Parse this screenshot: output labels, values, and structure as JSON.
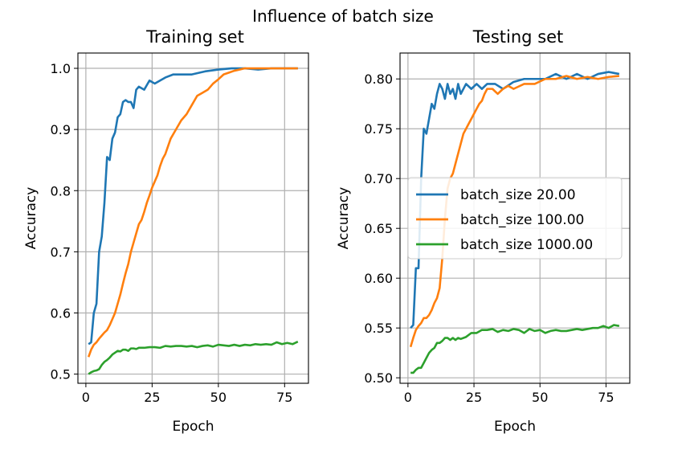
{
  "figure_title": "Influence of batch size",
  "legend": {
    "placement": "center-left of right panel",
    "entries": [
      {
        "label": "batch_size 20.00",
        "color": "#1f77b4"
      },
      {
        "label": "batch_size 100.00",
        "color": "#ff7f0e"
      },
      {
        "label": "batch_size 1000.00",
        "color": "#2ca02c"
      }
    ]
  },
  "chart_data": [
    {
      "type": "line",
      "title": "Training set",
      "xlabel": "Epoch",
      "ylabel": "Accuracy",
      "xlim": [
        -3,
        84
      ],
      "ylim": [
        0.485,
        1.025
      ],
      "grid": true,
      "xticks": [
        0,
        25,
        50,
        75
      ],
      "xtick_labels": [
        "0",
        "25",
        "50",
        "75"
      ],
      "yticks": [
        0.5,
        0.6,
        0.7,
        0.8,
        0.9,
        1.0
      ],
      "ytick_labels": [
        "0.5",
        "0.6",
        "0.7",
        "0.8",
        "0.9",
        "1.0"
      ],
      "series": [
        {
          "name": "batch_size 20.00",
          "color": "#1f77b4",
          "x": [
            1,
            2,
            3,
            4,
            5,
            6,
            7,
            8,
            9,
            10,
            11,
            12,
            13,
            14,
            15,
            16,
            17,
            18,
            19,
            20,
            22,
            24,
            26,
            28,
            30,
            33,
            36,
            40,
            45,
            50,
            55,
            60,
            65,
            70,
            75,
            80
          ],
          "y": [
            0.549,
            0.552,
            0.6,
            0.615,
            0.7,
            0.725,
            0.78,
            0.855,
            0.85,
            0.885,
            0.895,
            0.92,
            0.925,
            0.945,
            0.948,
            0.945,
            0.945,
            0.935,
            0.965,
            0.97,
            0.965,
            0.98,
            0.975,
            0.98,
            0.985,
            0.99,
            0.99,
            0.99,
            0.995,
            0.998,
            1.0,
            1.0,
            0.998,
            1.0,
            1.0,
            1.0
          ]
        },
        {
          "name": "batch_size 100.00",
          "color": "#ff7f0e",
          "x": [
            1,
            2,
            3,
            4,
            5,
            6,
            7,
            8,
            9,
            10,
            11,
            12,
            13,
            14,
            15,
            16,
            17,
            18,
            19,
            20,
            21,
            22,
            23,
            24,
            25,
            26,
            27,
            28,
            29,
            30,
            32,
            34,
            36,
            38,
            40,
            42,
            44,
            46,
            48,
            50,
            52,
            54,
            56,
            58,
            60,
            65,
            70,
            75,
            80
          ],
          "y": [
            0.528,
            0.54,
            0.548,
            0.552,
            0.558,
            0.563,
            0.568,
            0.572,
            0.58,
            0.59,
            0.6,
            0.615,
            0.63,
            0.648,
            0.665,
            0.68,
            0.7,
            0.715,
            0.73,
            0.745,
            0.752,
            0.765,
            0.78,
            0.792,
            0.805,
            0.815,
            0.825,
            0.84,
            0.852,
            0.86,
            0.885,
            0.9,
            0.915,
            0.925,
            0.94,
            0.955,
            0.96,
            0.965,
            0.975,
            0.982,
            0.99,
            0.993,
            0.996,
            0.998,
            1.0,
            1.0,
            1.0,
            1.0,
            1.0
          ]
        },
        {
          "name": "batch_size 1000.00",
          "color": "#2ca02c",
          "x": [
            1,
            2,
            3,
            4,
            5,
            6,
            7,
            8,
            9,
            10,
            11,
            12,
            13,
            14,
            15,
            16,
            17,
            18,
            19,
            20,
            22,
            24,
            26,
            28,
            30,
            32,
            34,
            36,
            38,
            40,
            42,
            44,
            46,
            48,
            50,
            52,
            54,
            56,
            58,
            60,
            62,
            64,
            66,
            68,
            70,
            72,
            74,
            76,
            78,
            80
          ],
          "y": [
            0.5,
            0.503,
            0.505,
            0.506,
            0.508,
            0.515,
            0.52,
            0.523,
            0.527,
            0.532,
            0.535,
            0.538,
            0.537,
            0.54,
            0.54,
            0.538,
            0.542,
            0.542,
            0.541,
            0.543,
            0.543,
            0.544,
            0.544,
            0.543,
            0.546,
            0.545,
            0.546,
            0.546,
            0.545,
            0.546,
            0.544,
            0.546,
            0.547,
            0.545,
            0.548,
            0.547,
            0.546,
            0.548,
            0.546,
            0.548,
            0.547,
            0.549,
            0.548,
            0.549,
            0.548,
            0.552,
            0.549,
            0.551,
            0.549,
            0.553
          ]
        }
      ]
    },
    {
      "type": "line",
      "title": "Testing set",
      "xlabel": "Epoch",
      "ylabel": "Accuracy",
      "xlim": [
        -3,
        84
      ],
      "ylim": [
        0.4945,
        0.826
      ],
      "grid": true,
      "xticks": [
        0,
        25,
        50,
        75
      ],
      "xtick_labels": [
        "0",
        "25",
        "50",
        "75"
      ],
      "yticks": [
        0.5,
        0.55,
        0.6,
        0.65,
        0.7,
        0.75,
        0.8
      ],
      "ytick_labels": [
        "0.50",
        "0.55",
        "0.60",
        "0.65",
        "0.70",
        "0.75",
        "0.80"
      ],
      "series": [
        {
          "name": "batch_size 20.00",
          "color": "#1f77b4",
          "x": [
            1,
            2,
            3,
            4,
            5,
            6,
            7,
            8,
            9,
            10,
            11,
            12,
            13,
            14,
            15,
            16,
            17,
            18,
            19,
            20,
            22,
            24,
            26,
            28,
            30,
            33,
            36,
            40,
            44,
            48,
            52,
            56,
            60,
            64,
            68,
            72,
            76,
            80
          ],
          "y": [
            0.55,
            0.553,
            0.61,
            0.61,
            0.7,
            0.75,
            0.745,
            0.76,
            0.775,
            0.77,
            0.785,
            0.795,
            0.79,
            0.78,
            0.795,
            0.785,
            0.79,
            0.78,
            0.795,
            0.785,
            0.795,
            0.79,
            0.795,
            0.79,
            0.795,
            0.795,
            0.79,
            0.797,
            0.8,
            0.8,
            0.8,
            0.805,
            0.8,
            0.805,
            0.8,
            0.805,
            0.807,
            0.805
          ]
        },
        {
          "name": "batch_size 100.00",
          "color": "#ff7f0e",
          "x": [
            1,
            2,
            3,
            4,
            5,
            6,
            7,
            8,
            9,
            10,
            11,
            12,
            13,
            14,
            15,
            16,
            17,
            18,
            19,
            20,
            21,
            22,
            23,
            24,
            25,
            26,
            27,
            28,
            29,
            30,
            32,
            34,
            36,
            38,
            40,
            44,
            48,
            52,
            56,
            60,
            64,
            68,
            72,
            76,
            80
          ],
          "y": [
            0.531,
            0.54,
            0.548,
            0.552,
            0.555,
            0.56,
            0.56,
            0.563,
            0.568,
            0.575,
            0.58,
            0.59,
            0.62,
            0.66,
            0.69,
            0.7,
            0.705,
            0.715,
            0.725,
            0.735,
            0.745,
            0.75,
            0.755,
            0.76,
            0.765,
            0.77,
            0.775,
            0.778,
            0.785,
            0.79,
            0.79,
            0.785,
            0.79,
            0.793,
            0.79,
            0.795,
            0.795,
            0.8,
            0.8,
            0.803,
            0.8,
            0.802,
            0.8,
            0.802,
            0.803
          ]
        },
        {
          "name": "batch_size 1000.00",
          "color": "#2ca02c",
          "x": [
            1,
            2,
            3,
            4,
            5,
            6,
            7,
            8,
            9,
            10,
            11,
            12,
            13,
            14,
            15,
            16,
            17,
            18,
            19,
            20,
            22,
            24,
            26,
            28,
            30,
            32,
            34,
            36,
            38,
            40,
            42,
            44,
            46,
            48,
            50,
            52,
            54,
            56,
            58,
            60,
            62,
            64,
            66,
            68,
            70,
            72,
            74,
            76,
            78,
            80
          ],
          "y": [
            0.505,
            0.505,
            0.508,
            0.51,
            0.51,
            0.515,
            0.52,
            0.525,
            0.528,
            0.53,
            0.535,
            0.535,
            0.537,
            0.54,
            0.54,
            0.538,
            0.54,
            0.538,
            0.54,
            0.539,
            0.541,
            0.545,
            0.545,
            0.548,
            0.548,
            0.549,
            0.546,
            0.548,
            0.547,
            0.549,
            0.548,
            0.545,
            0.549,
            0.547,
            0.548,
            0.545,
            0.547,
            0.548,
            0.547,
            0.547,
            0.548,
            0.549,
            0.548,
            0.549,
            0.55,
            0.55,
            0.552,
            0.55,
            0.553,
            0.552
          ]
        }
      ]
    }
  ]
}
